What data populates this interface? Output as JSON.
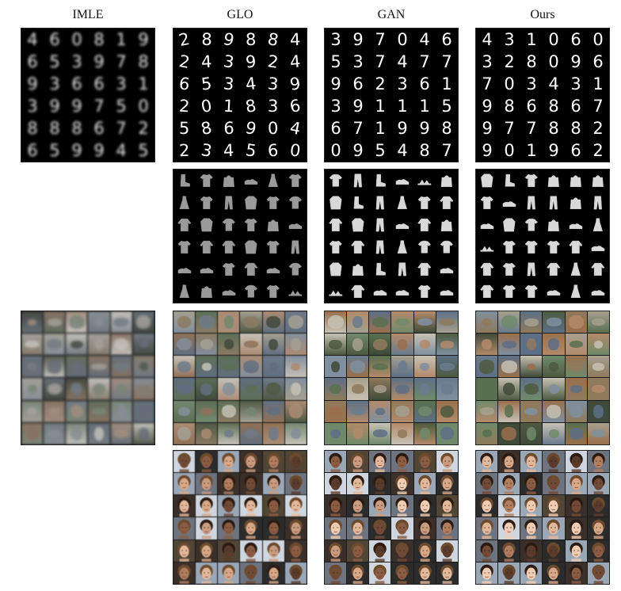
{
  "column_labels": [
    "IMLE",
    "GLO",
    "GAN",
    "Ours"
  ],
  "mnist": {
    "imle": [
      "4",
      "6",
      "0",
      "8",
      "1",
      "9",
      "6",
      "5",
      "3",
      "9",
      "7",
      "8",
      "9",
      "3",
      "6",
      "6",
      "3",
      "1",
      "3",
      "9",
      "9",
      "7",
      "5",
      "0",
      "8",
      "8",
      "8",
      "6",
      "7",
      "2",
      "6",
      "5",
      "9",
      "9",
      "4",
      "5"
    ],
    "glo": [
      "2",
      "8",
      "9",
      "8",
      "8",
      "4",
      "2",
      "4",
      "3",
      "9",
      "2",
      "4",
      "6",
      "5",
      "3",
      "4",
      "3",
      "9",
      "2",
      "0",
      "1",
      "8",
      "3",
      "6",
      "5",
      "8",
      "6",
      "9",
      "0",
      "4",
      "2",
      "3",
      "4",
      "5",
      "6",
      "0"
    ],
    "gan": [
      "3",
      "9",
      "7",
      "0",
      "4",
      "6",
      "5",
      "3",
      "7",
      "4",
      "7",
      "7",
      "9",
      "6",
      "2",
      "3",
      "6",
      "1",
      "3",
      "9",
      "1",
      "1",
      "1",
      "5",
      "6",
      "7",
      "1",
      "9",
      "9",
      "8",
      "0",
      "9",
      "5",
      "4",
      "8",
      "7"
    ],
    "ours": [
      "4",
      "3",
      "1",
      "0",
      "6",
      "0",
      "3",
      "2",
      "8",
      "0",
      "9",
      "6",
      "7",
      "0",
      "3",
      "4",
      "3",
      "1",
      "9",
      "8",
      "6",
      "8",
      "6",
      "7",
      "9",
      "7",
      "7",
      "8",
      "8",
      "2",
      "9",
      "0",
      "1",
      "9",
      "6",
      "2"
    ]
  },
  "fashion_glyphs": [
    "boot",
    "shirt",
    "bag",
    "sneaker",
    "dress",
    "pants",
    "tshirt",
    "sandal",
    "coat",
    "pullover"
  ],
  "colors": {
    "cifar_palette": [
      "#6f8a6a",
      "#8f7a5b",
      "#5d6f86",
      "#a6a08e",
      "#4d5a3f",
      "#7f8fa0",
      "#9a6f4c",
      "#c6c1b3",
      "#3f4a3a",
      "#6a7b8e",
      "#b38a6a",
      "#58704f"
    ],
    "face_palette": [
      "#c99b7f",
      "#8a5c43",
      "#e2b89b",
      "#5a3b2b",
      "#b07d5e",
      "#d6a887",
      "#704a36",
      "#f0cdb2"
    ],
    "face_bg": [
      "#2b2b2b",
      "#6d7480",
      "#9aa7b7",
      "#3b2f29",
      "#514535",
      "#cfd6df"
    ]
  }
}
